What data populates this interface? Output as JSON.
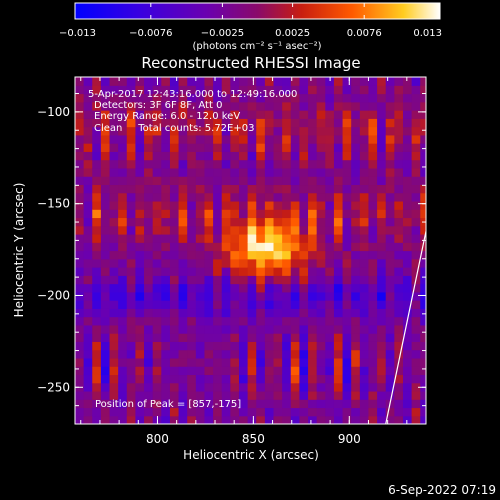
{
  "chart_data": {
    "type": "heatmap",
    "title": "Reconstructed RHESSI Image",
    "xlabel": "Heliocentric X (arcsec)",
    "ylabel": "Heliocentric Y (arcsec)",
    "xlim": [
      757,
      940
    ],
    "ylim": [
      -270,
      -81
    ],
    "x_ticks": [
      800,
      850,
      900
    ],
    "y_ticks": [
      -100,
      -150,
      -200,
      -250
    ],
    "x_tick_labels": [
      "800",
      "850",
      "900"
    ],
    "y_tick_labels": [
      "−100",
      "−150",
      "−200",
      "−250"
    ],
    "colorbar": {
      "min": -0.013,
      "max": 0.013,
      "ticks": [
        -0.013,
        -0.0076,
        -0.0025,
        0.0025,
        0.0076,
        0.013
      ],
      "tick_labels": [
        "−0.013",
        "−0.0076",
        "−0.0025",
        "0.0025",
        "0.0076",
        "0.013"
      ],
      "units_label": "(photons cm⁻² s⁻¹ asec⁻²)",
      "colors": [
        "#0000ff",
        "#6a00cc",
        "#8a0a7a",
        "#c81e10",
        "#ff5a00",
        "#ffcc20",
        "#ffffff"
      ]
    },
    "annotations": [
      "5-Apr-2017 12:43:16.000 to 12:49:16.000",
      "Detectors: 3F 6F 8F, Att 0",
      "Energy Range: 6.0 - 12.0 keV",
      "Clean     Total counts: 5.72E+03"
    ],
    "peak_label": "Position of Peak = [857,-175]",
    "peak": {
      "x": 857,
      "y": -175,
      "value": 0.013
    },
    "limb_line": [
      [
        919,
        -270
      ],
      [
        940,
        -165
      ]
    ],
    "footer": "6-Sep-2022 07:19"
  }
}
